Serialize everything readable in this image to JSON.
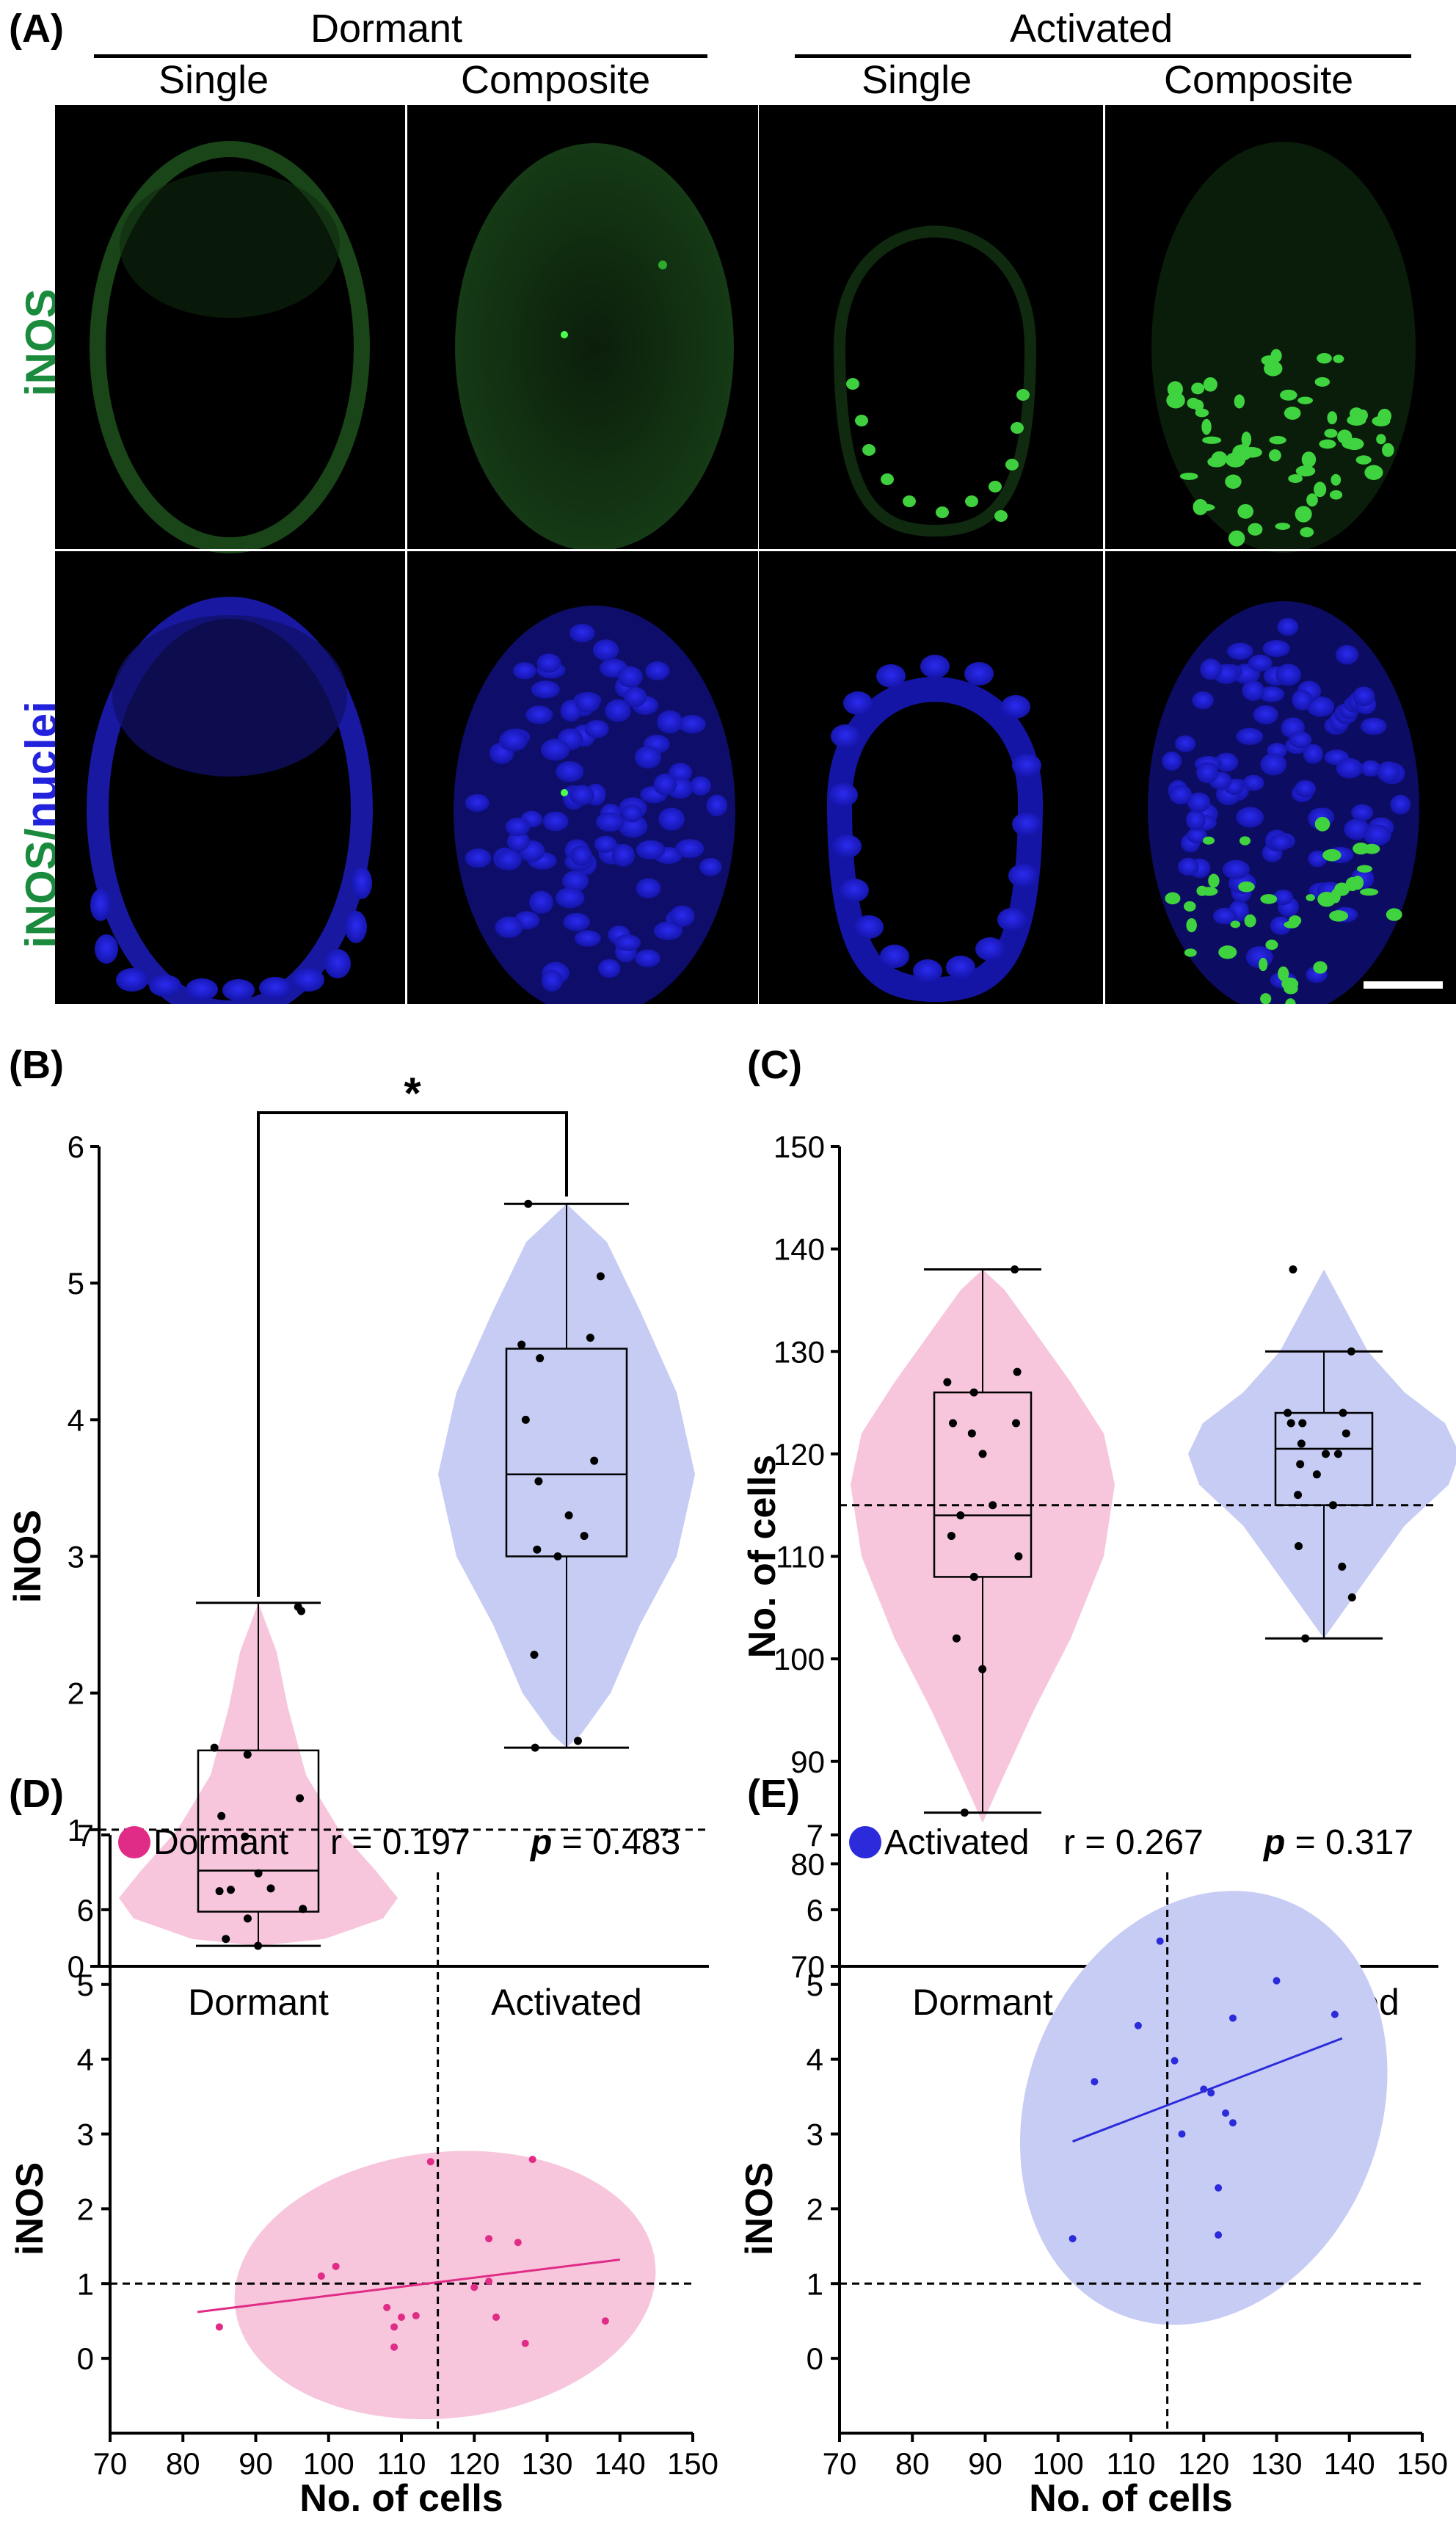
{
  "panel_labels": {
    "a": "(A)",
    "b": "(B)",
    "c": "(C)",
    "d": "(D)",
    "e": "(E)"
  },
  "microscopy": {
    "group_headers": [
      "Dormant",
      "Activated"
    ],
    "column_headers": [
      "Single",
      "Composite",
      "Single",
      "Composite"
    ],
    "row_labels": {
      "top": "iNOS",
      "bottom_part1": "iNOS",
      "bottom_sep": "/",
      "bottom_part2": "nuclei"
    },
    "colors": {
      "green": "#1a8a3c",
      "blue": "#2222dd"
    }
  },
  "chart_data": [
    {
      "id": "B",
      "type": "violin",
      "title": "",
      "xlabel": "",
      "ylabel": "iNOS",
      "categories": [
        "Dormant",
        "Activated"
      ],
      "ylim": [
        0,
        6
      ],
      "yticks": [
        "0",
        "1",
        "2",
        "3",
        "4",
        "5",
        "6"
      ],
      "reference_line": 1,
      "significance": "*",
      "colors": [
        "#f7c6dc",
        "#c6ccf3"
      ],
      "box": [
        {
          "min": 0.15,
          "q1": 0.4,
          "median": 0.7,
          "q3": 1.58,
          "max": 2.66
        },
        {
          "min": 1.6,
          "q1": 3.0,
          "median": 3.6,
          "q3": 4.52,
          "max": 5.58
        }
      ],
      "points": [
        [
          2.63,
          2.6,
          1.6,
          1.55,
          1.23,
          1.1,
          0.95,
          0.68,
          0.57,
          0.56,
          0.55,
          0.42,
          0.35,
          0.2,
          0.15
        ],
        [
          5.58,
          5.05,
          4.6,
          4.55,
          4.45,
          4.0,
          3.7,
          3.55,
          3.3,
          3.15,
          3.05,
          3.0,
          2.28,
          1.65,
          1.6
        ]
      ]
    },
    {
      "id": "C",
      "type": "violin",
      "title": "",
      "xlabel": "",
      "ylabel": "No. of cells",
      "categories": [
        "Dormant",
        "Activated"
      ],
      "ylim": [
        70,
        150
      ],
      "yticks": [
        "70",
        "80",
        "90",
        "100",
        "110",
        "120",
        "130",
        "140",
        "150"
      ],
      "reference_line": 115,
      "colors": [
        "#f7c6dc",
        "#c6ccf3"
      ],
      "box": [
        {
          "min": 85,
          "q1": 108,
          "median": 114,
          "q3": 126,
          "max": 138
        },
        {
          "min": 102,
          "q1": 115,
          "median": 120.5,
          "q3": 124,
          "max": 130
        }
      ],
      "points": [
        [
          138,
          128,
          127,
          126,
          123,
          123,
          122,
          120,
          115,
          114,
          112,
          110,
          108,
          102,
          99,
          85
        ],
        [
          138,
          130,
          124,
          124,
          123,
          123,
          122,
          121,
          120,
          120,
          119,
          118,
          116,
          115,
          111,
          109,
          106,
          102
        ]
      ]
    },
    {
      "id": "D",
      "type": "scatter",
      "title": "",
      "xlabel": "No. of cells",
      "ylabel": "iNOS",
      "legend": {
        "label": "Dormant",
        "r": "r = 0.197",
        "p_label": "p",
        "p_value": " = 0.483",
        "position": "top"
      },
      "xlim": [
        70,
        150
      ],
      "ylim": [
        -1,
        7
      ],
      "xticks": [
        "70",
        "80",
        "90",
        "100",
        "110",
        "120",
        "130",
        "140",
        "150"
      ],
      "yticks": [
        "0",
        "1",
        "2",
        "3",
        "4",
        "5",
        "6",
        "7"
      ],
      "reference_x": 115,
      "reference_y": 1,
      "color": "#e02c86",
      "ellipse_color": "#f7c6dc",
      "ellipse": {
        "cx": 116,
        "cy": 0.98,
        "rx": 29,
        "ry": 1.78,
        "angle_deg": -6
      },
      "fit": {
        "x": [
          82,
          140
        ],
        "y": [
          0.62,
          1.32
        ]
      },
      "x": [
        85,
        99,
        101,
        108,
        109,
        109,
        110,
        112,
        114,
        120,
        122,
        122,
        123,
        126,
        127,
        128,
        138
      ],
      "y": [
        0.42,
        1.1,
        1.23,
        0.68,
        0.42,
        0.15,
        0.55,
        0.57,
        2.63,
        0.95,
        1.6,
        1.03,
        0.55,
        1.55,
        0.2,
        2.66,
        0.5
      ]
    },
    {
      "id": "E",
      "type": "scatter",
      "title": "",
      "xlabel": "No. of cells",
      "ylabel": "iNOS",
      "legend": {
        "label": "Activated",
        "r": "r = 0.267",
        "p_label": "p",
        "p_value": " = 0.317",
        "position": "top"
      },
      "xlim": [
        70,
        150
      ],
      "ylim": [
        -1,
        7
      ],
      "xticks": [
        "70",
        "80",
        "90",
        "100",
        "110",
        "120",
        "130",
        "140",
        "150"
      ],
      "yticks": [
        "0",
        "1",
        "2",
        "3",
        "4",
        "5",
        "6",
        "7"
      ],
      "reference_x": 115,
      "reference_y": 1,
      "color": "#2b2bdb",
      "ellipse_color": "#c6ccf3",
      "ellipse": {
        "cx": 120,
        "cy": 3.35,
        "rx": 30.6,
        "ry": 2.36,
        "angle_deg": -68
      },
      "fit": {
        "x": [
          102,
          139
        ],
        "y": [
          2.9,
          4.28
        ]
      },
      "x": [
        102,
        105,
        111,
        114,
        116,
        117,
        120,
        121,
        122,
        122,
        123,
        124,
        124,
        130,
        138
      ],
      "y": [
        1.6,
        3.7,
        4.45,
        5.58,
        3.98,
        3.0,
        3.6,
        3.55,
        2.28,
        1.65,
        3.28,
        3.15,
        4.55,
        5.05,
        4.6
      ]
    }
  ]
}
